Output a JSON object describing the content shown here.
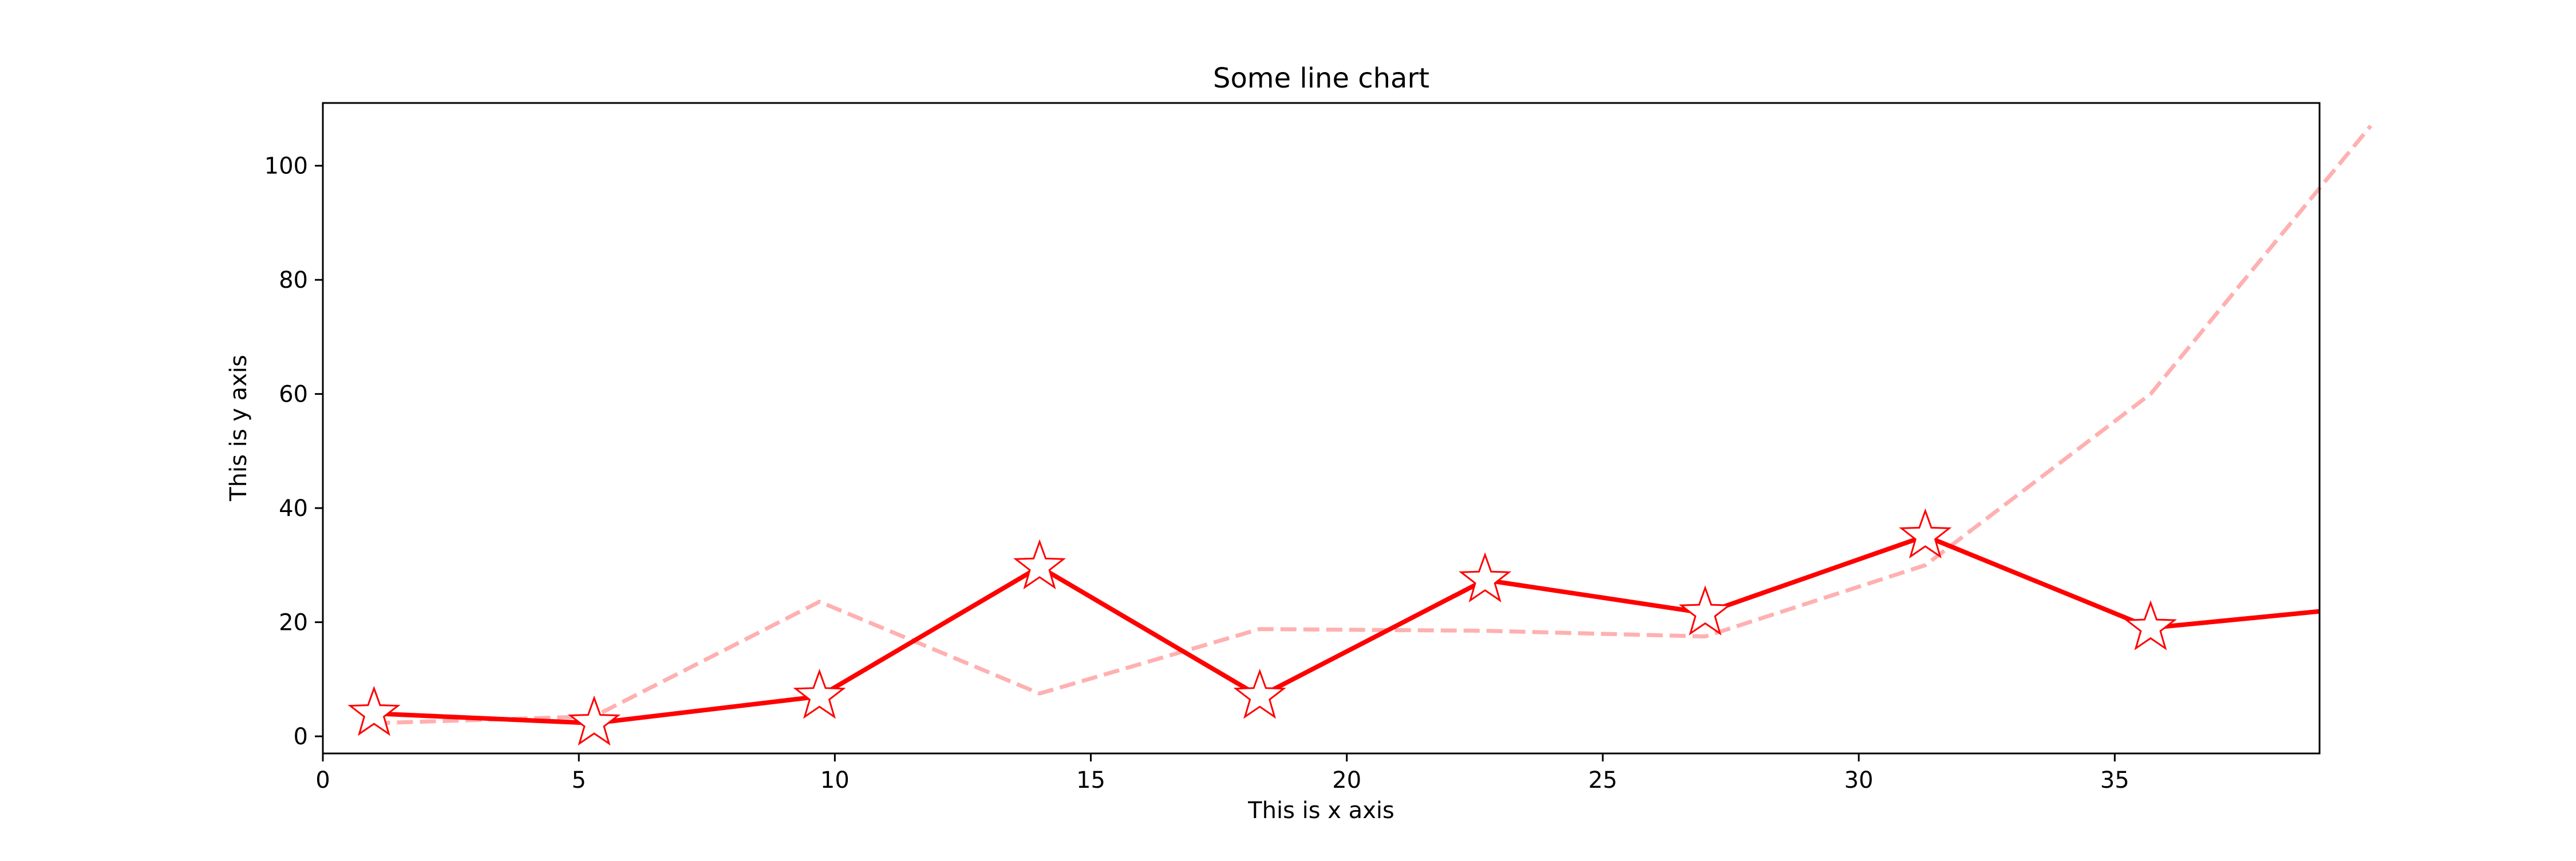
{
  "chart_data": {
    "type": "line",
    "title": "Some line chart",
    "xlabel": "This is x axis",
    "ylabel": "This is y axis",
    "xlim": [
      0,
      39
    ],
    "ylim": [
      -3,
      111
    ],
    "xticks": [
      "0",
      "5",
      "10",
      "15",
      "20",
      "25",
      "30",
      "35"
    ],
    "yticks": [
      "0",
      "20",
      "40",
      "60",
      "80",
      "100"
    ],
    "grid": false,
    "legend": false,
    "series": [
      {
        "style": "solid",
        "marker": "star",
        "color": "#ff0000",
        "x": [
          1,
          5.3,
          9.7,
          14,
          18.3,
          22.7,
          27,
          31.3,
          35.7,
          39
        ],
        "y": [
          4,
          2.3,
          7,
          29.7,
          7,
          27.4,
          21.6,
          35.1,
          19,
          21.9
        ]
      },
      {
        "style": "dashed",
        "marker": "none",
        "color": "#ffb0b0",
        "x": [
          1,
          5.3,
          9.7,
          14,
          18.3,
          22.7,
          27,
          31.3,
          35.7,
          40
        ],
        "y": [
          2.3,
          3.5,
          23.6,
          7.5,
          18.8,
          18.5,
          17.5,
          30,
          60,
          107
        ]
      }
    ]
  }
}
